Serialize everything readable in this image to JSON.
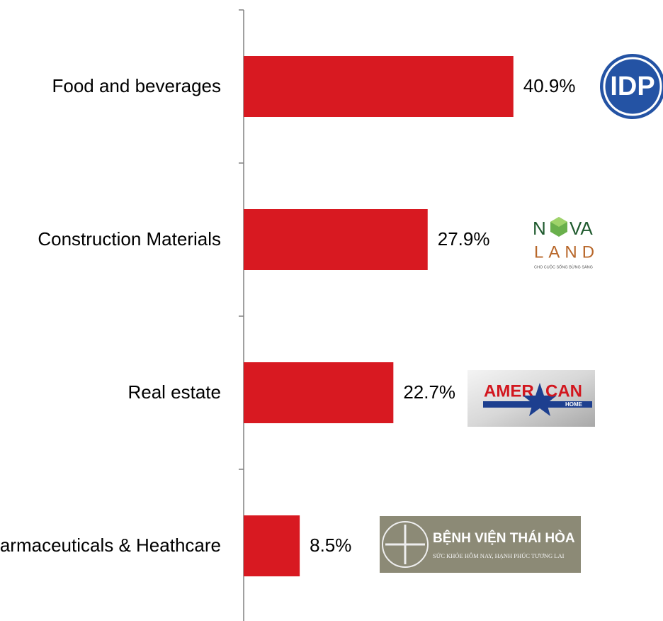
{
  "chart_data": {
    "type": "bar",
    "orientation": "horizontal",
    "categories": [
      "Food and beverages",
      "Construction Materials",
      "Real estate",
      "Pharmaceuticals & Heathcare"
    ],
    "values": [
      40.9,
      27.9,
      22.7,
      8.5
    ],
    "value_labels": [
      "40.9%",
      "27.9%",
      "22.7%",
      "8.5%"
    ],
    "color": "#d81921"
  },
  "logos": {
    "idp": {
      "text": "IDP"
    },
    "novaland": {
      "top_left": "N",
      "top_right": "VA",
      "bottom": "LAND",
      "tagline": "CHO CUỘC SỐNG BỪNG SÁNG"
    },
    "american_home": {
      "left": "AMER",
      "right": "CAN",
      "sub": "HOME"
    },
    "thai_hoa": {
      "name": "BỆNH VIỆN THÁI HÒA",
      "slogan": "SỨC KHỎE HÔM NAY, HẠNH PHÚC TƯƠNG LAI"
    }
  }
}
